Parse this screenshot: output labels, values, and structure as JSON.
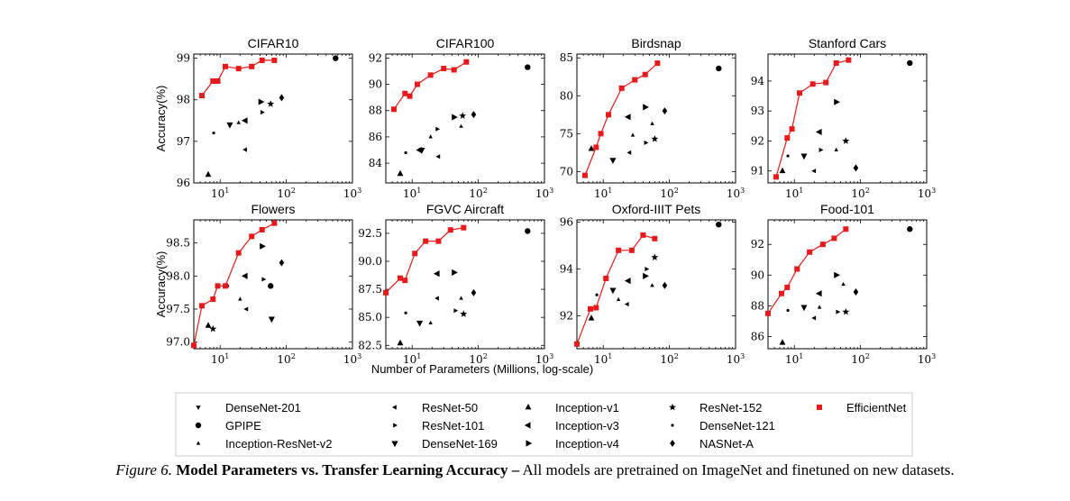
{
  "caption": {
    "label": "Figure 6.",
    "title": "Model Parameters vs. Transfer Learning Accuracy –",
    "text": "All models are pretrained on ImageNet and finetuned on new datasets."
  },
  "shared_xlabel": "Number of Parameters (Millions, log-scale)",
  "shared_ylabel": "Accuracy(%)",
  "colors": {
    "efficientnet": "#e8191a",
    "baseline": "#000000"
  },
  "legend": [
    {
      "name": "DenseNet-201",
      "marker": "tri_down"
    },
    {
      "name": "GPIPE",
      "marker": "circle"
    },
    {
      "name": "Inception-ResNet-v2",
      "marker": "tri_up_small"
    },
    {
      "name": "ResNet-50",
      "marker": "tri_left"
    },
    {
      "name": "ResNet-101",
      "marker": "tri_right"
    },
    {
      "name": "DenseNet-169",
      "marker": "tri_down_big"
    },
    {
      "name": "Inception-v1",
      "marker": "tri_up"
    },
    {
      "name": "Inception-v3",
      "marker": "tri_left_big"
    },
    {
      "name": "Inception-v4",
      "marker": "tri_right_big"
    },
    {
      "name": "ResNet-152",
      "marker": "star"
    },
    {
      "name": "DenseNet-121",
      "marker": "dot"
    },
    {
      "name": "NASNet-A",
      "marker": "diamond"
    },
    {
      "name": "EfficientNet",
      "marker": "square"
    }
  ],
  "chart_data": [
    {
      "type": "scatter",
      "title": "CIFAR10",
      "xscale": "log",
      "xlim": [
        4,
        1000
      ],
      "ylim": [
        96,
        99.1
      ],
      "xticks": [
        "10^1",
        "10^2",
        "10^3"
      ],
      "yticks": [
        96,
        97,
        98,
        99
      ],
      "ytick_labels": [
        "96",
        "97",
        "98",
        "99"
      ],
      "ylabel": "Accuracy(%)",
      "efficientnet": {
        "x": [
          5.3,
          7.8,
          9.2,
          12,
          19,
          30,
          43,
          66
        ],
        "y": [
          98.1,
          98.45,
          98.45,
          98.8,
          98.75,
          98.8,
          98.95,
          98.95
        ]
      },
      "baselines": [
        {
          "model": "Inception-v1",
          "x": 6.6,
          "y": 96.2
        },
        {
          "model": "DenseNet-121",
          "x": 8,
          "y": 97.2
        },
        {
          "model": "Inception-v3",
          "x": 24,
          "y": 97.5
        },
        {
          "model": "DenseNet-169",
          "x": 14,
          "y": 97.4
        },
        {
          "model": "Inception-ResNet-v2",
          "x": 19,
          "y": 97.45
        },
        {
          "model": "ResNet-50",
          "x": 24,
          "y": 96.8
        },
        {
          "model": "Inception-v4",
          "x": 41,
          "y": 97.95
        },
        {
          "model": "ResNet-101",
          "x": 43,
          "y": 97.7
        },
        {
          "model": "ResNet-152",
          "x": 58,
          "y": 97.9
        },
        {
          "model": "NASNet-A",
          "x": 85,
          "y": 98.05
        },
        {
          "model": "GPIPE",
          "x": 556,
          "y": 99
        }
      ]
    },
    {
      "type": "scatter",
      "title": "CIFAR100",
      "xscale": "log",
      "xlim": [
        4,
        1000
      ],
      "ylim": [
        82.5,
        92.3
      ],
      "xticks": [
        "10^1",
        "10^2",
        "10^3"
      ],
      "yticks": [
        84,
        86,
        88,
        90,
        92
      ],
      "ytick_labels": [
        "84",
        "86",
        "88",
        "90",
        "92"
      ],
      "ylabel": "",
      "efficientnet": {
        "x": [
          5.3,
          7.8,
          9.2,
          12,
          19,
          30,
          43,
          66
        ],
        "y": [
          88.1,
          89.3,
          89.1,
          90,
          90.7,
          91.2,
          91.1,
          91.7
        ]
      },
      "baselines": [
        {
          "model": "Inception-v1",
          "x": 6.6,
          "y": 83.2
        },
        {
          "model": "DenseNet-121",
          "x": 8,
          "y": 84.8
        },
        {
          "model": "Inception-v3",
          "x": 13,
          "y": 85
        },
        {
          "model": "DenseNet-169",
          "x": 14,
          "y": 85
        },
        {
          "model": "Inception-ResNet-v2",
          "x": 19,
          "y": 86
        },
        {
          "model": "ResNet-50",
          "x": 25,
          "y": 84.5
        },
        {
          "model": "ResNet-101",
          "x": 24,
          "y": 86.6
        },
        {
          "model": "Inception-v4",
          "x": 43,
          "y": 87.5
        },
        {
          "model": "ResNet-152",
          "x": 58,
          "y": 87.6
        },
        {
          "model": "Inception-ResNet-v2",
          "x": 55,
          "y": 86.8
        },
        {
          "model": "NASNet-A",
          "x": 85,
          "y": 87.7
        },
        {
          "model": "GPIPE",
          "x": 556,
          "y": 91.3
        }
      ]
    },
    {
      "type": "scatter",
      "title": "Birdsnap",
      "xscale": "log",
      "xlim": [
        4,
        1000
      ],
      "ylim": [
        68.5,
        85.5
      ],
      "xticks": [
        "10^1",
        "10^2",
        "10^3"
      ],
      "yticks": [
        70,
        75,
        80,
        85
      ],
      "ytick_labels": [
        "70",
        "75",
        "80",
        "85"
      ],
      "ylabel": "",
      "efficientnet": {
        "x": [
          5.3,
          7.8,
          9.2,
          12,
          19,
          30,
          43,
          66
        ],
        "y": [
          69.5,
          73.2,
          75,
          77.5,
          81,
          82.1,
          82.8,
          84.3
        ]
      },
      "baselines": [
        {
          "model": "Inception-v1",
          "x": 6.6,
          "y": 73
        },
        {
          "model": "DenseNet-121",
          "x": 8,
          "y": 73.2
        },
        {
          "model": "DenseNet-169",
          "x": 14,
          "y": 71.5
        },
        {
          "model": "ResNet-50",
          "x": 25,
          "y": 72.5
        },
        {
          "model": "Inception-v3",
          "x": 24,
          "y": 77.2
        },
        {
          "model": "Inception-ResNet-v2",
          "x": 28,
          "y": 74.8
        },
        {
          "model": "Inception-v4",
          "x": 43,
          "y": 78.5
        },
        {
          "model": "ResNet-101",
          "x": 44,
          "y": 73.8
        },
        {
          "model": "Inception-ResNet-v2",
          "x": 55,
          "y": 76.3
        },
        {
          "model": "ResNet-152",
          "x": 60,
          "y": 74.3
        },
        {
          "model": "NASNet-A",
          "x": 85,
          "y": 78
        },
        {
          "model": "GPIPE",
          "x": 556,
          "y": 83.6
        }
      ]
    },
    {
      "type": "scatter",
      "title": "Stanford Cars",
      "xscale": "log",
      "xlim": [
        4,
        1000
      ],
      "ylim": [
        90.6,
        94.9
      ],
      "xticks": [
        "10^1",
        "10^2",
        "10^3"
      ],
      "yticks": [
        91,
        92,
        93,
        94
      ],
      "ytick_labels": [
        "91",
        "92",
        "93",
        "94"
      ],
      "ylabel": "",
      "efficientnet": {
        "x": [
          5.3,
          7.8,
          9.2,
          12,
          19,
          30,
          43,
          66
        ],
        "y": [
          90.8,
          92.1,
          92.4,
          93.6,
          93.9,
          93.95,
          94.6,
          94.7
        ]
      },
      "baselines": [
        {
          "model": "Inception-v1",
          "x": 6.6,
          "y": 91
        },
        {
          "model": "DenseNet-121",
          "x": 8,
          "y": 91.5
        },
        {
          "model": "DenseNet-169",
          "x": 14,
          "y": 91.5
        },
        {
          "model": "ResNet-50",
          "x": 20,
          "y": 91
        },
        {
          "model": "Inception-v3",
          "x": 24,
          "y": 92.3
        },
        {
          "model": "ResNet-101",
          "x": 25,
          "y": 91.7
        },
        {
          "model": "Inception-v4",
          "x": 43,
          "y": 93.3
        },
        {
          "model": "Inception-ResNet-v2",
          "x": 43,
          "y": 91.7
        },
        {
          "model": "ResNet-152",
          "x": 60,
          "y": 92
        },
        {
          "model": "NASNet-A",
          "x": 85,
          "y": 91.1
        },
        {
          "model": "GPIPE",
          "x": 556,
          "y": 94.6
        }
      ]
    },
    {
      "type": "scatter",
      "title": "Flowers",
      "xscale": "log",
      "xlim": [
        4,
        1000
      ],
      "ylim": [
        96.9,
        98.85
      ],
      "xticks": [
        "10^1",
        "10^2",
        "10^3"
      ],
      "yticks": [
        97.0,
        97.5,
        98.0,
        98.5
      ],
      "ytick_labels": [
        "97.0",
        "97.5",
        "98.0",
        "98.5"
      ],
      "ylabel": "Accuracy(%)",
      "efficientnet": {
        "x": [
          4,
          5.3,
          7.8,
          9.2,
          12,
          19,
          30,
          43,
          66
        ],
        "y": [
          96.95,
          97.55,
          97.65,
          97.85,
          97.85,
          98.35,
          98.6,
          98.7,
          98.8
        ]
      },
      "baselines": [
        {
          "model": "Inception-v1",
          "x": 6.6,
          "y": 97.25
        },
        {
          "model": "ResNet-152",
          "x": 7.8,
          "y": 97.2
        },
        {
          "model": "DenseNet-121",
          "x": 13,
          "y": 97.85
        },
        {
          "model": "Inception-ResNet-v2",
          "x": 20,
          "y": 97.65
        },
        {
          "model": "Inception-v3",
          "x": 24,
          "y": 98
        },
        {
          "model": "ResNet-50",
          "x": 25,
          "y": 97.5
        },
        {
          "model": "Inception-v4",
          "x": 43,
          "y": 98.45
        },
        {
          "model": "ResNet-101",
          "x": 45,
          "y": 97.95
        },
        {
          "model": "GPIPE",
          "x": 58,
          "y": 97.85
        },
        {
          "model": "DenseNet-169",
          "x": 60,
          "y": 97.35
        },
        {
          "model": "NASNet-A",
          "x": 85,
          "y": 98.2
        }
      ]
    },
    {
      "type": "scatter",
      "title": "FGVC Aircraft",
      "xscale": "log",
      "xlim": [
        4,
        1000
      ],
      "ylim": [
        82.2,
        93.7
      ],
      "xticks": [
        "10^1",
        "10^2",
        "10^3"
      ],
      "yticks": [
        82.5,
        85.0,
        87.5,
        90.0,
        92.5
      ],
      "ytick_labels": [
        "82.5",
        "85.0",
        "87.5",
        "90.0",
        "92.5"
      ],
      "ylabel": "",
      "efficientnet": {
        "x": [
          4,
          6.6,
          7.8,
          11,
          16,
          25,
          38,
          60
        ],
        "y": [
          87.2,
          88.5,
          88.3,
          90.7,
          91.8,
          91.8,
          92.8,
          93
        ]
      },
      "baselines": [
        {
          "model": "Inception-v1",
          "x": 6.6,
          "y": 82.7
        },
        {
          "model": "DenseNet-121",
          "x": 8,
          "y": 85.4
        },
        {
          "model": "DenseNet-169",
          "x": 13,
          "y": 84.5
        },
        {
          "model": "Inception-ResNet-v2",
          "x": 19,
          "y": 84.5
        },
        {
          "model": "Inception-v3",
          "x": 24,
          "y": 88.9
        },
        {
          "model": "ResNet-50",
          "x": 24,
          "y": 86.7
        },
        {
          "model": "Inception-v4",
          "x": 43,
          "y": 89
        },
        {
          "model": "ResNet-101",
          "x": 45,
          "y": 85.6
        },
        {
          "model": "Inception-ResNet-v2",
          "x": 55,
          "y": 86.7
        },
        {
          "model": "ResNet-152",
          "x": 60,
          "y": 85.3
        },
        {
          "model": "NASNet-A",
          "x": 85,
          "y": 87.2
        },
        {
          "model": "GPIPE",
          "x": 556,
          "y": 92.7
        }
      ]
    },
    {
      "type": "scatter",
      "title": "Oxford-IIIT Pets",
      "xscale": "log",
      "xlim": [
        4,
        1000
      ],
      "ylim": [
        90.6,
        96.1
      ],
      "xticks": [
        "10^1",
        "10^2",
        "10^3"
      ],
      "yticks": [
        92,
        94,
        96
      ],
      "ytick_labels": [
        "92",
        "94",
        "96"
      ],
      "ylabel": "",
      "efficientnet": {
        "x": [
          4,
          6.4,
          7.8,
          11,
          17,
          27,
          40,
          60
        ],
        "y": [
          90.8,
          92.3,
          92.35,
          93.6,
          94.8,
          94.8,
          95.45,
          95.3
        ]
      },
      "baselines": [
        {
          "model": "Inception-v1",
          "x": 6.6,
          "y": 91.9
        },
        {
          "model": "DenseNet-121",
          "x": 8,
          "y": 92.9
        },
        {
          "model": "DenseNet-169",
          "x": 14,
          "y": 93.1
        },
        {
          "model": "Inception-ResNet-v2",
          "x": 17,
          "y": 92.7
        },
        {
          "model": "ResNet-50",
          "x": 23,
          "y": 92.5
        },
        {
          "model": "Inception-v3",
          "x": 24,
          "y": 93.5
        },
        {
          "model": "Inception-v4",
          "x": 43,
          "y": 93.7
        },
        {
          "model": "ResNet-101",
          "x": 45,
          "y": 94
        },
        {
          "model": "ResNet-152",
          "x": 60,
          "y": 94.5
        },
        {
          "model": "Inception-ResNet-v2",
          "x": 55,
          "y": 93.3
        },
        {
          "model": "NASNet-A",
          "x": 85,
          "y": 93.3
        },
        {
          "model": "GPIPE",
          "x": 556,
          "y": 95.9
        }
      ]
    },
    {
      "type": "scatter",
      "title": "Food-101",
      "xscale": "log",
      "xlim": [
        4,
        1000
      ],
      "ylim": [
        85.2,
        93.6
      ],
      "xticks": [
        "10^1",
        "10^2",
        "10^3"
      ],
      "yticks": [
        86,
        88,
        90,
        92
      ],
      "ytick_labels": [
        "86",
        "88",
        "90",
        "92"
      ],
      "ylabel": "",
      "efficientnet": {
        "x": [
          4,
          6.4,
          7.8,
          11,
          17,
          27,
          40,
          60
        ],
        "y": [
          87.5,
          88.8,
          89.2,
          90.4,
          91.5,
          92,
          92.4,
          93
        ]
      },
      "baselines": [
        {
          "model": "Inception-v1",
          "x": 6.6,
          "y": 85.6
        },
        {
          "model": "DenseNet-121",
          "x": 8,
          "y": 87.7
        },
        {
          "model": "DenseNet-169",
          "x": 14,
          "y": 87.9
        },
        {
          "model": "ResNet-50",
          "x": 20,
          "y": 87.2
        },
        {
          "model": "Inception-v3",
          "x": 24,
          "y": 88.8
        },
        {
          "model": "Inception-ResNet-v2",
          "x": 24,
          "y": 87.9
        },
        {
          "model": "Inception-v4",
          "x": 43,
          "y": 90
        },
        {
          "model": "ResNet-101",
          "x": 45,
          "y": 87.6
        },
        {
          "model": "Inception-ResNet-v2",
          "x": 55,
          "y": 89.4
        },
        {
          "model": "ResNet-152",
          "x": 60,
          "y": 87.6
        },
        {
          "model": "NASNet-A",
          "x": 85,
          "y": 88.9
        },
        {
          "model": "GPIPE",
          "x": 556,
          "y": 93
        }
      ]
    }
  ]
}
